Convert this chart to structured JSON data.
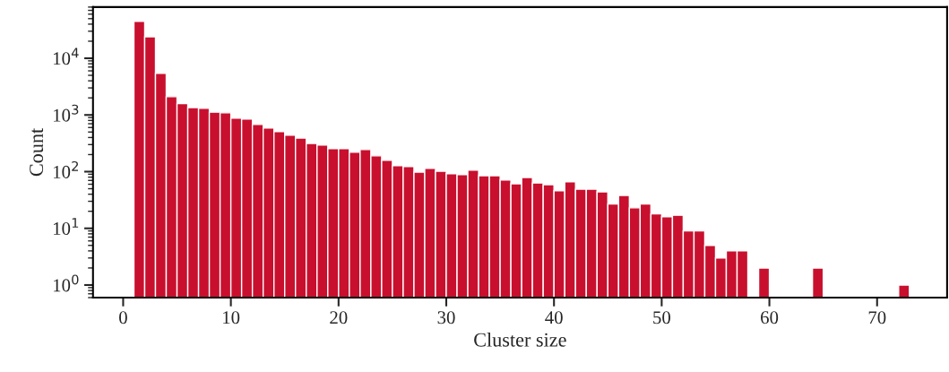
{
  "chart_data": {
    "type": "histogram",
    "xlabel": "Cluster size",
    "ylabel": "Count",
    "color": "#c8102e",
    "bins": [
      1,
      2,
      3,
      4,
      5,
      6,
      7,
      8,
      9,
      10,
      11,
      12,
      13,
      14,
      15,
      16,
      17,
      18,
      19,
      20,
      21,
      22,
      23,
      24,
      25,
      26,
      27,
      28,
      29,
      30,
      31,
      32,
      33,
      34,
      35,
      36,
      37,
      38,
      39,
      40,
      41,
      42,
      43,
      44,
      45,
      46,
      47,
      48,
      49,
      50,
      51,
      52,
      53,
      54,
      55,
      56,
      57,
      58,
      59,
      60,
      61,
      62,
      63,
      64,
      65,
      66,
      67,
      68,
      69,
      70,
      71,
      72,
      73
    ],
    "values": [
      45000,
      24000,
      5400,
      2100,
      1580,
      1350,
      1310,
      1120,
      1090,
      875,
      850,
      680,
      590,
      510,
      440,
      390,
      315,
      295,
      255,
      255,
      220,
      245,
      190,
      158,
      127,
      123,
      98,
      114,
      102,
      92,
      89,
      106,
      85,
      85,
      71,
      61,
      79,
      63,
      59,
      46,
      66,
      49,
      49,
      44,
      27,
      38,
      23,
      27,
      18,
      16,
      17,
      9,
      9,
      5,
      3,
      4,
      4,
      null,
      2,
      null,
      null,
      null,
      null,
      2,
      null,
      null,
      null,
      null,
      null,
      null,
      null,
      1
    ],
    "log": "y",
    "xlim": [
      -2.8,
      76.5
    ],
    "xticks": [
      0,
      10,
      20,
      30,
      40,
      50,
      60,
      70
    ],
    "ylim": [
      0.6,
      80000
    ],
    "yticks": [
      {
        "value": 1,
        "label": "10$^{0}$"
      },
      {
        "value": 10,
        "label": "10$^{1}$"
      },
      {
        "value": 100,
        "label": "10$^{2}$"
      },
      {
        "value": 1000,
        "label": "10$^{3}$"
      },
      {
        "value": 10000,
        "label": "10$^{4}$"
      }
    ],
    "grid": false,
    "legend": false
  }
}
